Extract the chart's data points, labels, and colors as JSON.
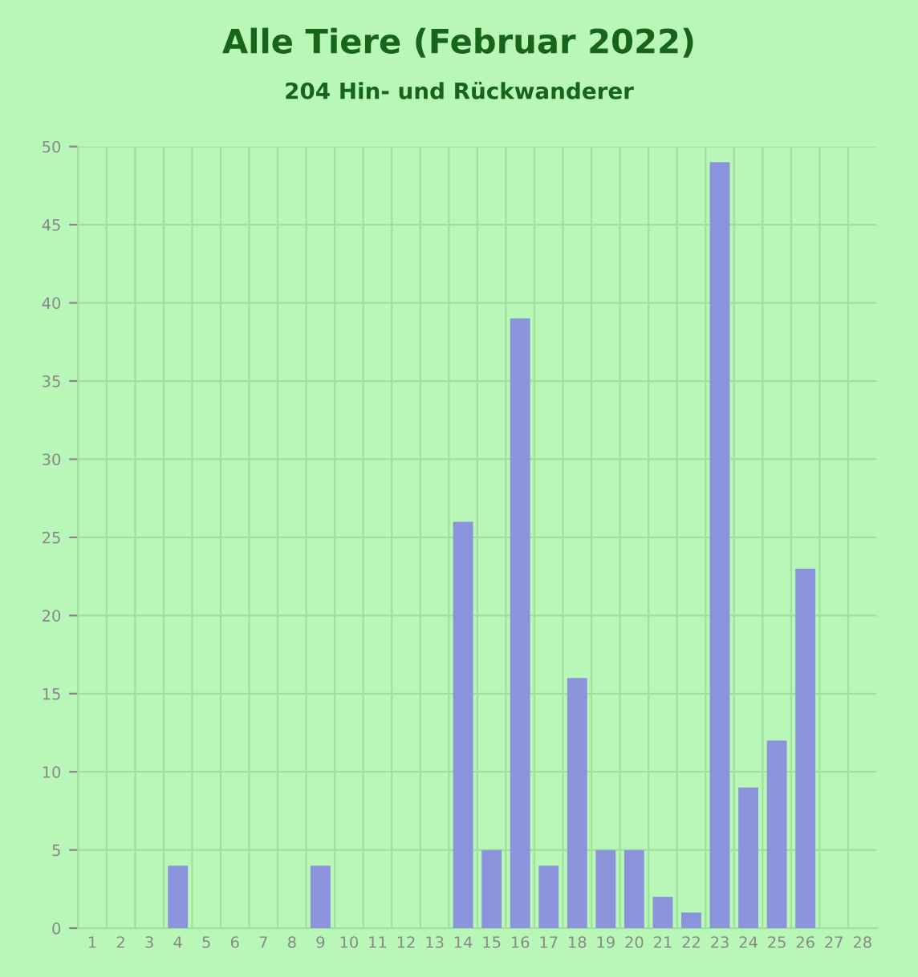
{
  "chart_data": {
    "type": "bar",
    "title": "Alle Tiere (Februar 2022)",
    "subtitle": "204 Hin- und Rückwanderer",
    "categories": [
      "1",
      "2",
      "3",
      "4",
      "5",
      "6",
      "7",
      "8",
      "9",
      "10",
      "11",
      "12",
      "13",
      "14",
      "15",
      "16",
      "17",
      "18",
      "19",
      "20",
      "21",
      "22",
      "23",
      "24",
      "25",
      "26",
      "27",
      "28"
    ],
    "values": [
      0,
      0,
      0,
      4,
      0,
      0,
      0,
      0,
      4,
      0,
      0,
      0,
      0,
      26,
      5,
      39,
      4,
      16,
      5,
      5,
      2,
      1,
      49,
      9,
      12,
      23,
      0,
      0
    ],
    "color": "#8b93dd",
    "ylim": [
      0,
      50
    ],
    "yticks": [
      0,
      5,
      10,
      15,
      20,
      25,
      30,
      35,
      40,
      45,
      50
    ],
    "grid": true,
    "legend": false
  }
}
